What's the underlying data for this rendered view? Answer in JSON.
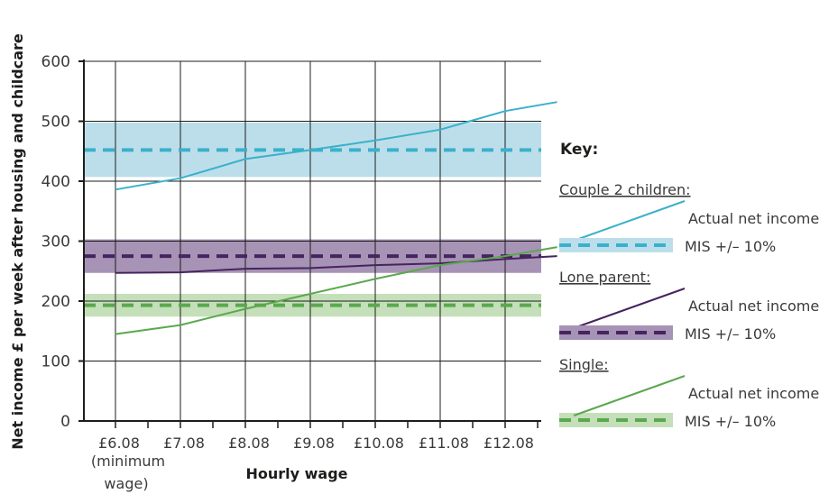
{
  "chart_data": {
    "type": "line",
    "ylabel": "Net income £ per week after housing and childcare",
    "xlabel": "Hourly wage",
    "ylim": [
      0,
      600
    ],
    "yticks": [
      0,
      100,
      200,
      300,
      400,
      500,
      600
    ],
    "categories": [
      "£6.08",
      "£7.08",
      "£8.08",
      "£9.08",
      "£10.08",
      "£11.08",
      "£12.08"
    ],
    "category_note": [
      "(minimum",
      "wage)"
    ],
    "grid": true,
    "legend_position": "right",
    "key_title": "Key:",
    "groups": [
      {
        "name": "Couple 2 children:",
        "color": "#3ab1cb",
        "band_color": "#bcdeea",
        "actual_label": "Actual net income",
        "mis_label": "MIS +/– 10%",
        "actual_values": [
          386,
          405,
          437,
          452,
          468,
          486,
          517,
          532
        ],
        "actual_x": [
          6.08,
          7.08,
          8.08,
          9.08,
          10.08,
          11.08,
          12.08,
          12.88
        ],
        "mis": 452,
        "mis_low": 407,
        "mis_high": 498
      },
      {
        "name": "Lone parent:",
        "color": "#46245f",
        "band_color": "#a793b5",
        "actual_label": "Actual net income",
        "mis_label": "MIS +/– 10%",
        "actual_values": [
          247,
          248,
          254,
          255,
          260,
          263,
          270,
          275
        ],
        "actual_x": [
          6.08,
          7.08,
          8.08,
          9.08,
          10.08,
          11.08,
          12.08,
          12.88
        ],
        "mis": 275,
        "mis_low": 247,
        "mis_high": 303
      },
      {
        "name": "Single:",
        "color": "#5ba84e",
        "band_color": "#c4dfb9",
        "actual_label": "Actual net income",
        "mis_label": "MIS +/– 10%",
        "actual_values": [
          145,
          160,
          187,
          212,
          237,
          260,
          275,
          290
        ],
        "actual_x": [
          6.08,
          7.08,
          8.08,
          9.08,
          10.08,
          11.08,
          12.08,
          12.88
        ],
        "mis": 193,
        "mis_low": 174,
        "mis_high": 212
      }
    ]
  }
}
